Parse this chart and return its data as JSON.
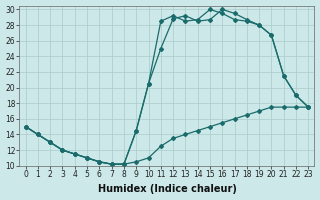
{
  "xlabel": "Humidex (Indice chaleur)",
  "bg_color": "#cce8e8",
  "line_color": "#1a6b6b",
  "yticks": [
    10,
    12,
    14,
    16,
    18,
    20,
    22,
    24,
    26,
    28,
    30
  ],
  "xtick_labels": [
    "0",
    "1",
    "2",
    "3",
    "4",
    "5",
    "6",
    "7",
    "8",
    "9",
    "10",
    "11",
    "12",
    "13",
    "14",
    "15",
    "16",
    "17",
    "18",
    "19",
    "20",
    "21",
    "22",
    "23"
  ],
  "curve1_x": [
    0,
    1,
    2,
    3,
    4,
    5,
    6,
    7,
    8,
    9,
    10,
    11,
    12,
    13,
    14,
    15,
    16,
    17,
    18,
    19,
    20,
    21,
    22,
    23
  ],
  "curve1_y": [
    15,
    14,
    13,
    12,
    11.5,
    11,
    10.5,
    10.2,
    10.2,
    10.5,
    11.0,
    12.5,
    13.5,
    14.0,
    14.5,
    15.0,
    15.5,
    16.0,
    16.5,
    17.0,
    17.5,
    17.5,
    17.5,
    17.5
  ],
  "curve2_x": [
    0,
    1,
    2,
    3,
    4,
    5,
    6,
    7,
    8,
    9,
    10,
    11,
    12,
    13,
    14,
    15,
    16,
    17,
    18,
    19,
    20,
    21,
    22,
    23
  ],
  "curve2_y": [
    15,
    14,
    13,
    12,
    11.5,
    11,
    10.5,
    10.2,
    10.2,
    14.5,
    20.5,
    25.0,
    28.8,
    29.2,
    28.5,
    28.7,
    30.0,
    29.5,
    28.7,
    28.0,
    26.7,
    21.5,
    19.0,
    17.5
  ],
  "curve3_x": [
    0,
    1,
    2,
    3,
    4,
    5,
    6,
    7,
    8,
    9,
    10,
    11,
    12,
    13,
    14,
    15,
    16,
    17,
    18,
    19,
    20,
    21,
    22,
    23
  ],
  "curve3_y": [
    15,
    14,
    13,
    12,
    11.5,
    11,
    10.5,
    10.2,
    10.2,
    14.5,
    20.5,
    28.5,
    29.2,
    28.5,
    28.7,
    30.0,
    29.5,
    28.7,
    28.5,
    28.0,
    26.7,
    21.5,
    19.0,
    17.5
  ],
  "grid_color": "#aacccc",
  "font_size_ticks": 5.5,
  "font_size_xlabel": 7.0,
  "marker": "D",
  "markersize": 2.0,
  "linewidth": 0.9
}
